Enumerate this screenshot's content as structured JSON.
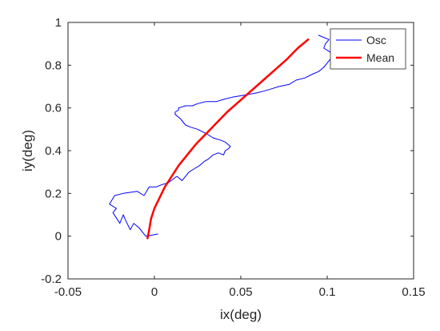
{
  "chart_data": {
    "type": "line",
    "xlabel": "ix(deg)",
    "ylabel": "iy(deg)",
    "xlim": [
      -0.05,
      0.15
    ],
    "ylim": [
      -0.2,
      1.0
    ],
    "xticks": [
      -0.05,
      0,
      0.05,
      0.1,
      0.15
    ],
    "yticks": [
      -0.2,
      0,
      0.2,
      0.4,
      0.6,
      0.8,
      1
    ],
    "xtick_labels": [
      "-0.05",
      "0",
      "0.05",
      "0.1",
      "0.15"
    ],
    "ytick_labels": [
      "-0.2",
      "0",
      "0.2",
      "0.4",
      "0.6",
      "0.8",
      "1"
    ],
    "grid": false,
    "legend_position": "top-right",
    "legend": [
      {
        "label": "Osc",
        "color": "#0000ff"
      },
      {
        "label": "Mean",
        "color": "#ff0000"
      }
    ],
    "series": [
      {
        "name": "Osc",
        "color": "#0000ff",
        "line_width": 1,
        "x": [
          0.002,
          -0.005,
          -0.009,
          -0.012,
          -0.014,
          -0.017,
          -0.018,
          -0.02,
          -0.024,
          -0.022,
          -0.026,
          -0.023,
          -0.018,
          -0.01,
          -0.006,
          -0.003,
          0.001,
          0.004,
          0.008,
          0.013,
          0.016,
          0.02,
          0.022,
          0.026,
          0.029,
          0.031,
          0.034,
          0.037,
          0.04,
          0.041,
          0.043,
          0.044,
          0.041,
          0.038,
          0.034,
          0.03,
          0.025,
          0.021,
          0.018,
          0.015,
          0.012,
          0.012,
          0.014,
          0.014,
          0.018,
          0.022,
          0.025,
          0.03,
          0.036,
          0.04,
          0.045,
          0.052,
          0.059,
          0.064,
          0.068,
          0.072,
          0.078,
          0.082,
          0.087,
          0.092,
          0.095,
          0.098,
          0.1,
          0.102,
          0.104,
          0.102,
          0.098,
          0.099,
          0.101,
          0.095
        ],
        "y": [
          0.01,
          0.0,
          0.04,
          0.06,
          0.03,
          0.08,
          0.1,
          0.06,
          0.11,
          0.13,
          0.15,
          0.19,
          0.2,
          0.21,
          0.19,
          0.23,
          0.23,
          0.24,
          0.25,
          0.28,
          0.26,
          0.3,
          0.31,
          0.33,
          0.35,
          0.36,
          0.38,
          0.39,
          0.38,
          0.4,
          0.41,
          0.42,
          0.44,
          0.45,
          0.46,
          0.48,
          0.5,
          0.51,
          0.52,
          0.55,
          0.57,
          0.58,
          0.59,
          0.6,
          0.61,
          0.61,
          0.62,
          0.63,
          0.63,
          0.64,
          0.65,
          0.66,
          0.67,
          0.68,
          0.69,
          0.7,
          0.71,
          0.73,
          0.74,
          0.76,
          0.77,
          0.79,
          0.81,
          0.83,
          0.85,
          0.86,
          0.88,
          0.9,
          0.92,
          0.94
        ]
      },
      {
        "name": "Mean",
        "color": "#ff0000",
        "line_width": 2.5,
        "x": [
          -0.004,
          -0.003,
          -0.002,
          0.0,
          0.003,
          0.006,
          0.01,
          0.014,
          0.019,
          0.024,
          0.03,
          0.036,
          0.042,
          0.049,
          0.056,
          0.063,
          0.07,
          0.077,
          0.083,
          0.089
        ],
        "y": [
          -0.01,
          0.03,
          0.08,
          0.13,
          0.18,
          0.23,
          0.28,
          0.33,
          0.38,
          0.43,
          0.48,
          0.53,
          0.58,
          0.63,
          0.68,
          0.73,
          0.78,
          0.83,
          0.88,
          0.92
        ]
      }
    ]
  }
}
